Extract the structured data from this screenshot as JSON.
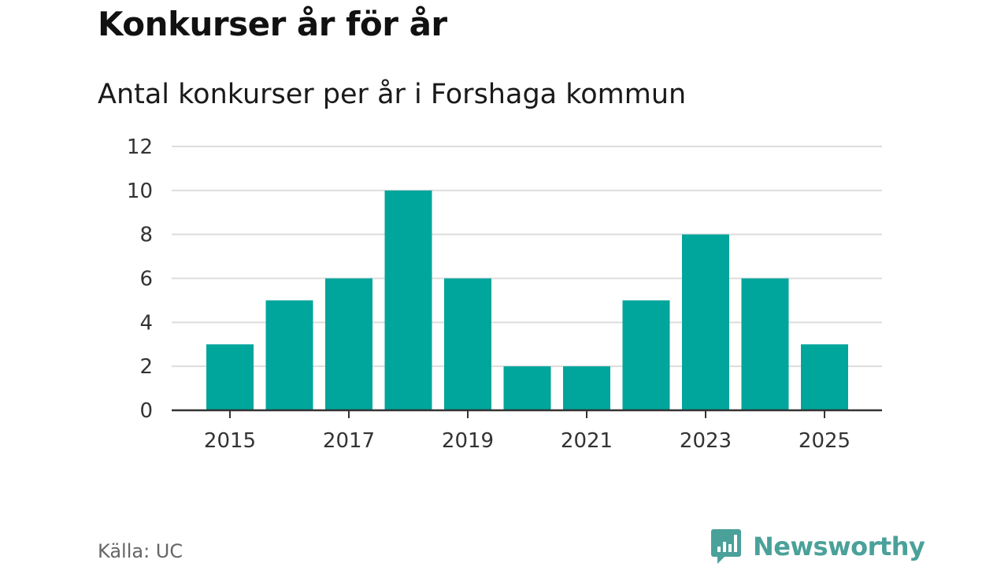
{
  "title": "Konkurser år för år",
  "subtitle": "Antal konkurser per år i Forshaga kommun",
  "source": "Källa: UC",
  "logo": {
    "text": "Newsworthy",
    "icon": "bar-chart-speech-bubble-icon"
  },
  "colors": {
    "bar": "#00a59b",
    "grid": "#dddddd",
    "axis": "#333333",
    "logo": "#4aa19a"
  },
  "chart_data": {
    "type": "bar",
    "title": "Konkurser år för år",
    "subtitle": "Antal konkurser per år i Forshaga kommun",
    "categories": [
      "2015",
      "2016",
      "2017",
      "2018",
      "2019",
      "2020",
      "2021",
      "2022",
      "2023",
      "2024",
      "2025"
    ],
    "values": [
      3,
      5,
      6,
      10,
      6,
      2,
      2,
      5,
      8,
      6,
      3
    ],
    "xticks": [
      "2015",
      "2017",
      "2019",
      "2021",
      "2023",
      "2025"
    ],
    "yticks": [
      0,
      2,
      4,
      6,
      8,
      10,
      12
    ],
    "ylim": [
      0,
      12
    ],
    "xlabel": "",
    "ylabel": "",
    "grid": true,
    "legend": "none"
  }
}
